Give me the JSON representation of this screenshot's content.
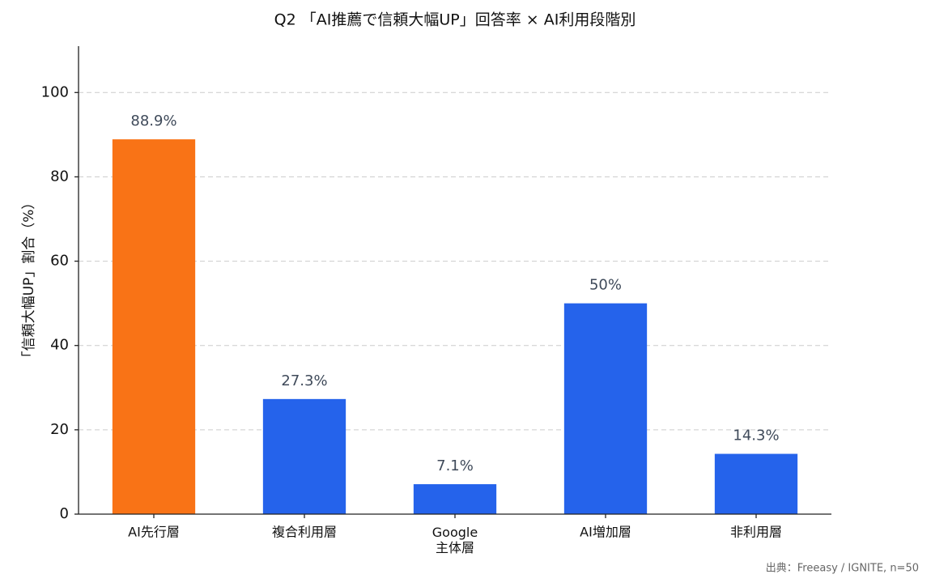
{
  "chart_data": {
    "type": "bar",
    "title": "Q2 「AI推薦で信頼大幅UP」回答率 × AI利用段階別",
    "ylabel": "「信頼大幅UP」割合（%）",
    "source": "出典：Freeasy / IGNITE, n=50",
    "categories": [
      "AI先行層",
      "複合利用層",
      "Google\n主体層",
      "AI増加層",
      "非利用層"
    ],
    "values": [
      88.9,
      27.3,
      7.1,
      50,
      14.3
    ],
    "value_labels": [
      "88.9%",
      "27.3%",
      "7.1%",
      "50%",
      "14.3%"
    ],
    "colors": [
      "#f97316",
      "#2563eb",
      "#2563eb",
      "#2563eb",
      "#2563eb"
    ],
    "ylim": [
      0,
      111
    ],
    "yticks": [
      0,
      20,
      40,
      60,
      80,
      100
    ],
    "grid": true
  }
}
